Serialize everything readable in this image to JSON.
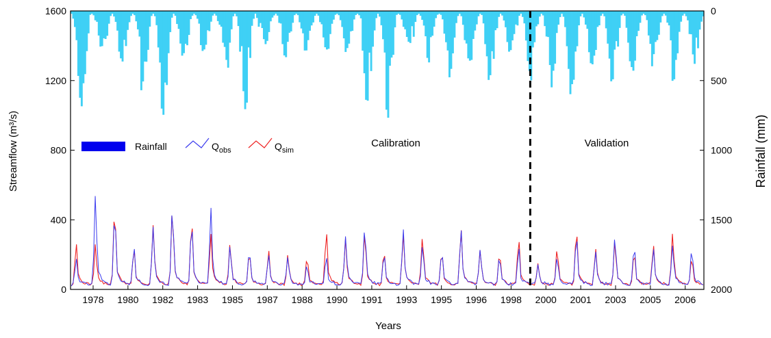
{
  "chart_data": {
    "type": "line",
    "xlabel": "Years",
    "ylabel": "Streamflow (m³/s)",
    "y2label": "Rainfall (mm)",
    "ylim": [
      0,
      1600
    ],
    "y2lim": [
      0,
      2000
    ],
    "y2_inverted": true,
    "yticks": [
      "0",
      "400",
      "800",
      "1200",
      "1600"
    ],
    "y2ticks": [
      "0",
      "500",
      "1000",
      "1500",
      "2000"
    ],
    "xticks": [
      "1978",
      "1980",
      "1982",
      "1983",
      "1985",
      "1987",
      "1988",
      "1990",
      "1991",
      "1993",
      "1995",
      "1996",
      "1998",
      "2000",
      "2001",
      "2003",
      "2005",
      "2006"
    ],
    "x_range_months": 372,
    "period_split_month": 270,
    "periods": [
      "Calibration",
      "Validation"
    ],
    "legend": {
      "placement": "left-center",
      "rainfall": "Rainfall",
      "qobs_main": "Q",
      "qobs_sub": "obs",
      "qsim_main": "Q",
      "qsim_sub": "sim"
    },
    "colors": {
      "rainfall": "#3fd0f5",
      "rainfall_legend": "#0000ee",
      "qobs": "#3a3aee",
      "qsim": "#ee2222",
      "divider": "#000000"
    },
    "series": [
      {
        "key": "rainfall",
        "peaks": [
          720,
          260,
          410,
          330,
          580,
          760,
          350,
          310,
          280,
          620,
          720,
          250,
          320,
          300,
          290,
          280,
          310,
          650,
          770,
          230,
          370,
          320,
          480,
          360,
          500,
          300,
          500,
          420,
          570,
          650,
          400,
          520,
          480,
          420,
          330,
          540,
          390
        ]
      },
      {
        "key": "qobs",
        "peaks": [
          180,
          550,
          440,
          250,
          360,
          460,
          380,
          470,
          250,
          220,
          200,
          190,
          140,
          200,
          310,
          350,
          210,
          340,
          260,
          210,
          340,
          230,
          200,
          240,
          150,
          190,
          310,
          210,
          300,
          250,
          230,
          250,
          230
        ]
      },
      {
        "key": "qsim",
        "peaks": [
          270,
          260,
          460,
          240,
          370,
          460,
          390,
          320,
          260,
          210,
          220,
          200,
          190,
          340,
          290,
          330,
          220,
          320,
          300,
          210,
          350,
          230,
          210,
          290,
          150,
          240,
          340,
          230,
          280,
          220,
          250,
          320,
          180
        ]
      }
    ]
  }
}
